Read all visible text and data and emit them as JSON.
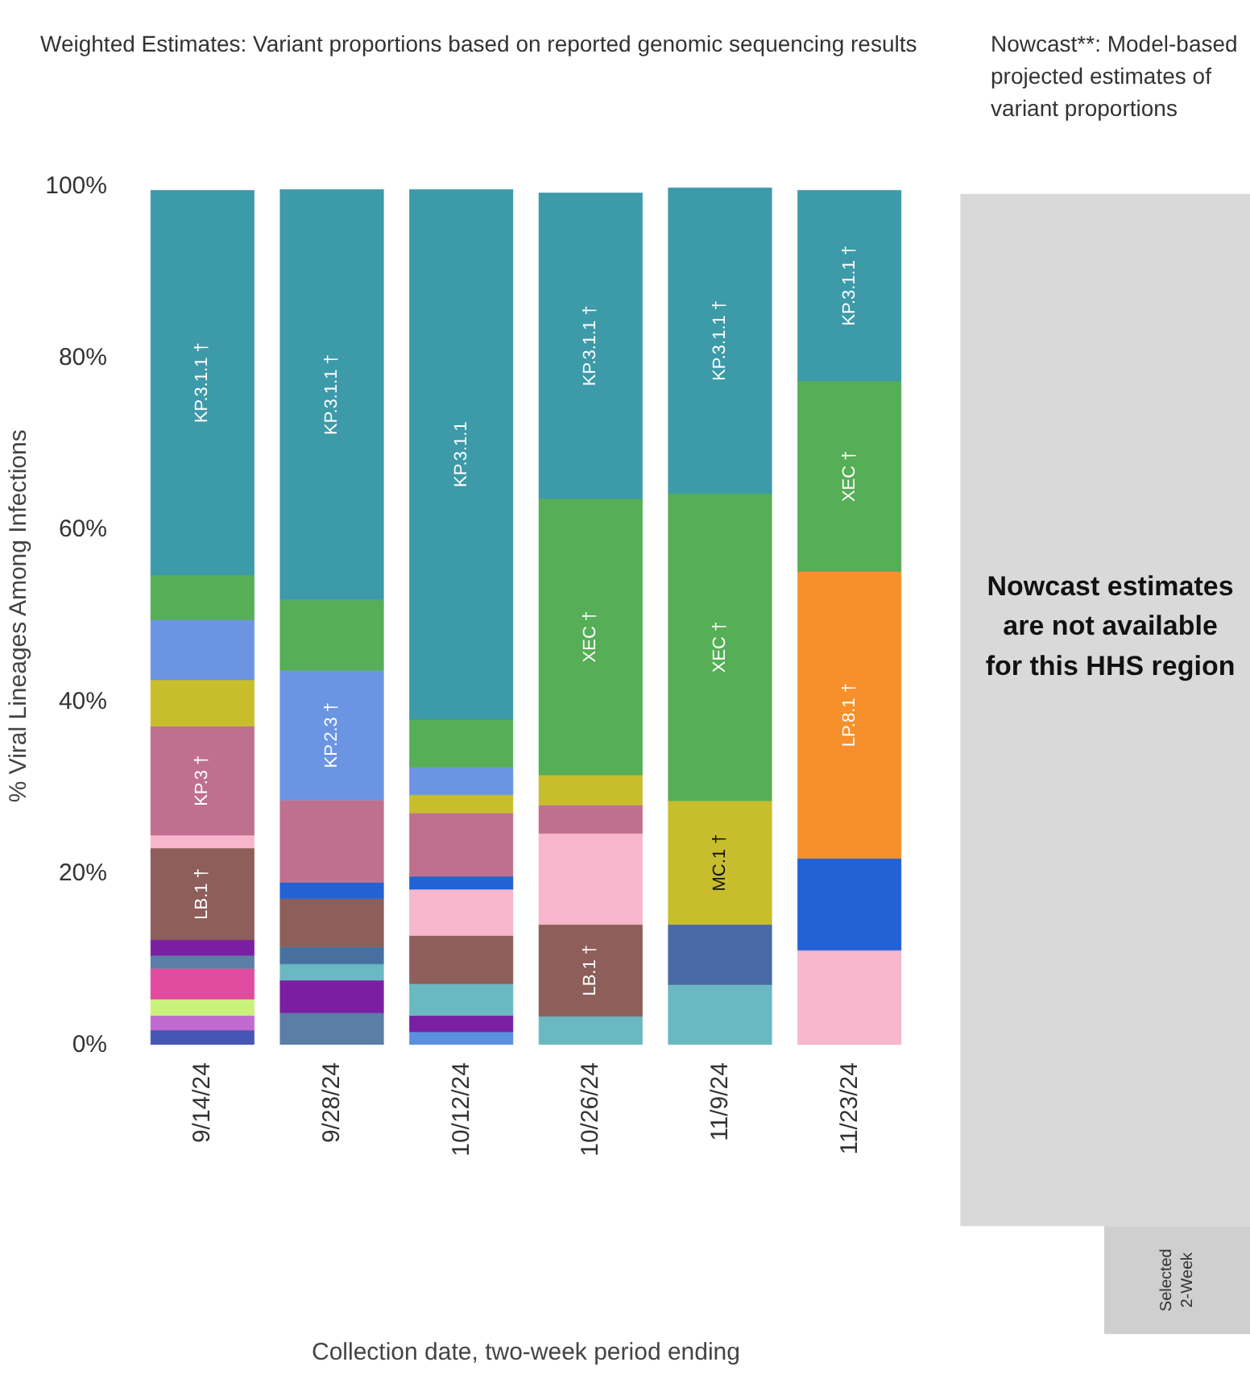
{
  "chart_data": [
    {
      "type": "bar",
      "stacked": true,
      "title": "Weighted Estimates: Variant proportions based on reported genomic sequencing results",
      "xlabel": "Collection date, two-week period ending",
      "ylabel": "% Viral Lineages Among Infections",
      "categories": [
        "9/14/24",
        "9/28/24",
        "10/12/24",
        "10/26/24",
        "11/9/24",
        "11/23/24"
      ],
      "ylim": [
        0,
        100
      ],
      "yticks": [
        {
          "value": 0,
          "label": "0%"
        },
        {
          "value": 20,
          "label": "20%"
        },
        {
          "value": 40,
          "label": "40%"
        },
        {
          "value": 60,
          "label": "60%"
        },
        {
          "value": 80,
          "label": "80%"
        },
        {
          "value": 100,
          "label": "100%"
        }
      ],
      "grid": false,
      "series": [
        {
          "color": "#4656b4",
          "values": [
            1.7,
            null,
            null,
            null,
            null,
            null
          ]
        },
        {
          "color": "#c06ad0",
          "values": [
            1.7,
            null,
            null,
            null,
            null,
            null
          ]
        },
        {
          "color": "#c8f27c",
          "values": [
            1.9,
            null,
            null,
            null,
            null,
            null
          ]
        },
        {
          "color": "#e04a9f",
          "values": [
            3.6,
            null,
            null,
            null,
            null,
            null
          ]
        },
        {
          "color": "#5a7ea6",
          "values": [
            1.5,
            3.7,
            null,
            null,
            null,
            null
          ]
        },
        {
          "color": "#5b8fe0",
          "values": [
            null,
            null,
            1.5,
            null,
            null,
            null
          ]
        },
        {
          "color": "#7b1fa2",
          "values": [
            1.8,
            3.8,
            1.9,
            null,
            null,
            null
          ]
        },
        {
          "color": "#6ab9c2",
          "values": [
            null,
            1.9,
            3.7,
            3.3,
            7.0,
            null
          ]
        },
        {
          "color": "#46719f",
          "values": [
            null,
            2.0,
            null,
            null,
            null,
            null
          ]
        },
        {
          "color": "#4a6aa5",
          "values": [
            null,
            null,
            null,
            null,
            7.0,
            null
          ]
        },
        {
          "color": "#8e5e5a",
          "values": [
            10.7,
            5.6,
            5.6,
            10.7,
            null,
            null
          ],
          "value_labels": [
            "LB.1 †",
            null,
            null,
            "LB.1 †",
            null,
            null
          ]
        },
        {
          "color": "#f7b6cb",
          "values": [
            1.5,
            null,
            5.4,
            10.6,
            null,
            11.0
          ]
        },
        {
          "color": "#2362d4",
          "values": [
            null,
            1.9,
            1.5,
            null,
            null,
            10.7
          ]
        },
        {
          "color": "#c0708f",
          "values": [
            12.7,
            9.6,
            7.4,
            3.3,
            null,
            null
          ],
          "value_labels": [
            "KP.3 †",
            null,
            null,
            null,
            null,
            null
          ]
        },
        {
          "color": "#c8bd2c",
          "values": [
            5.4,
            null,
            2.1,
            3.5,
            14.4,
            null
          ],
          "value_labels": [
            null,
            null,
            null,
            null,
            "MC.1 †",
            null
          ]
        },
        {
          "color": "#6b94e2",
          "values": [
            7.0,
            15.1,
            3.2,
            null,
            null,
            null
          ],
          "value_labels": [
            null,
            "KP.2.3 †",
            null,
            null,
            null,
            null
          ]
        },
        {
          "color": "#f7902b",
          "values": [
            null,
            null,
            null,
            null,
            null,
            33.4
          ],
          "value_labels": [
            null,
            null,
            null,
            null,
            null,
            "LP.8.1 †"
          ]
        },
        {
          "color": "#56ae57",
          "values": [
            5.2,
            8.2,
            5.6,
            32.2,
            35.8,
            22.2
          ],
          "value_labels": [
            null,
            null,
            null,
            "XEC †",
            "XEC †",
            "XEC †"
          ]
        },
        {
          "color": "#3d9aa8",
          "values": [
            44.8,
            47.8,
            61.7,
            35.6,
            35.6,
            22.2
          ],
          "value_labels": [
            "KP.3.1.1 †",
            "KP.3.1.1 †",
            "KP.3.1.1",
            "KP.3.1.1 †",
            "KP.3.1.1 †",
            "KP.3.1.1 †"
          ]
        }
      ]
    },
    {
      "type": "other",
      "title": "Nowcast**: Model-based projected estimates of variant proportions",
      "annotations": [
        "Nowcast estimates are not available for this HHS region",
        "Selected 2-Week"
      ]
    }
  ]
}
